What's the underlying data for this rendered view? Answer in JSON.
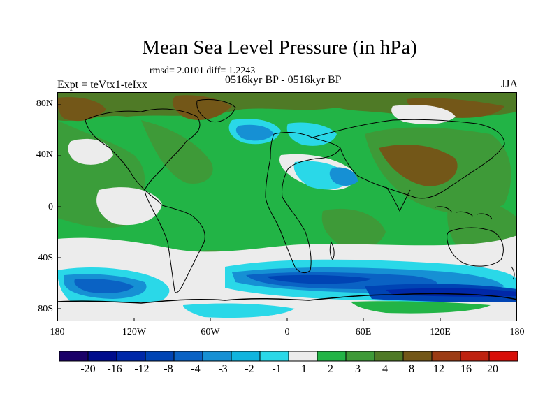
{
  "title": "Mean Sea Level Pressure (in hPa)",
  "stats": "rmsd= 2.0101 diff= 1.2243",
  "experiment": "Expt = teVtx1-teIxx",
  "period": "0516kyr BP - 0516kyr BP",
  "season": "JJA",
  "lat_labels": [
    "80N",
    "40N",
    "0",
    "40S",
    "80S"
  ],
  "lat_values": [
    80,
    40,
    0,
    -40,
    -80
  ],
  "lon_labels": [
    "180",
    "120W",
    "60W",
    "0",
    "60E",
    "120E",
    "180"
  ],
  "lon_values": [
    -180,
    -120,
    -60,
    0,
    60,
    120,
    180
  ],
  "colorbar": {
    "labels": [
      "-20",
      "-16",
      "-12",
      "-8",
      "-4",
      "-3",
      "-2",
      "-1",
      "1",
      "2",
      "3",
      "4",
      "8",
      "12",
      "16",
      "20"
    ],
    "colors": [
      "#1a0068",
      "#000c8c",
      "#0028a8",
      "#0044b4",
      "#0a62c4",
      "#1690d4",
      "#10b4de",
      "#2ad8e8",
      "#ececec",
      "#22b446",
      "#3e9a38",
      "#4f7a26",
      "#735718",
      "#9c3c14",
      "#bf2210",
      "#d80e08"
    ]
  },
  "legend_colors": {
    "neutral": "#ececec",
    "positive_low": "#22b446",
    "positive_mid": "#3e9a38",
    "positive_high": "#735718",
    "negative_low": "#2ad8e8",
    "negative_mid": "#1690d4",
    "negative_high": "#0044b4"
  }
}
